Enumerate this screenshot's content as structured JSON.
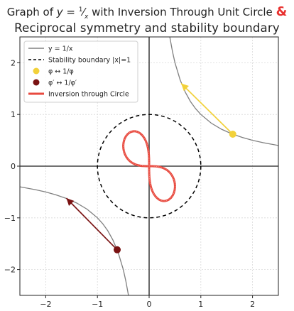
{
  "title": {
    "line1_text": "Graph of y = 1/x with Inversion Through Unit Circle",
    "line1_prefix": "Graph of",
    "line1_suffix": "with Inversion Through Unit Circle",
    "line1_amp": "&",
    "line2_text": "Reciprocal symmetry and stability boundary",
    "amp_color": "#e8312f"
  },
  "chart_data": {
    "type": "line",
    "title": "Graph of y = 1/x with Inversion Through Unit Circle & Reciprocal symmetry and stability boundary",
    "xlim": [
      -2.5,
      2.5
    ],
    "ylim": [
      -2.5,
      2.5
    ],
    "x_ticks": [
      -2,
      -1,
      0,
      1,
      2
    ],
    "y_ticks": [
      -2,
      -1,
      0,
      1,
      2
    ],
    "x_tick_labels": [
      "−2",
      "−1",
      "0",
      "1",
      "2"
    ],
    "y_tick_labels": [
      "−2",
      "−1",
      "0",
      "1",
      "2"
    ],
    "grid": true,
    "legend_position": "top-left",
    "series": [
      {
        "name": "y = 1/x",
        "kind": "curve",
        "color": "#808080",
        "points": [
          [
            0.4,
            2.5
          ],
          [
            0.45,
            2.222
          ],
          [
            0.5,
            2.0
          ],
          [
            0.6,
            1.667
          ],
          [
            0.7,
            1.429
          ],
          [
            0.8,
            1.25
          ],
          [
            0.9,
            1.111
          ],
          [
            1.0,
            1.0
          ],
          [
            1.2,
            0.833
          ],
          [
            1.4,
            0.714
          ],
          [
            1.6,
            0.625
          ],
          [
            1.8,
            0.556
          ],
          [
            2.0,
            0.5
          ],
          [
            2.2,
            0.455
          ],
          [
            2.5,
            0.4
          ]
        ],
        "mirror_points": [
          [
            -0.4,
            -2.5
          ],
          [
            -0.45,
            -2.222
          ],
          [
            -0.5,
            -2.0
          ],
          [
            -0.6,
            -1.667
          ],
          [
            -0.7,
            -1.429
          ],
          [
            -0.8,
            -1.25
          ],
          [
            -0.9,
            -1.111
          ],
          [
            -1.0,
            -1.0
          ],
          [
            -1.2,
            -0.833
          ],
          [
            -1.4,
            -0.714
          ],
          [
            -1.6,
            -0.625
          ],
          [
            -1.8,
            -0.556
          ],
          [
            -2.0,
            -0.5
          ],
          [
            -2.2,
            -0.455
          ],
          [
            -2.5,
            -0.4
          ]
        ]
      },
      {
        "name": "Stability boundary |x|=1",
        "kind": "circle",
        "color": "#000000",
        "center": [
          0,
          0
        ],
        "radius": 1
      },
      {
        "name": "φ ↔ 1/φ",
        "kind": "marker",
        "color": "#f2d13a",
        "point": [
          1.618,
          0.618
        ],
        "arrow_to": [
          0.62,
          1.6
        ]
      },
      {
        "name": "φ′ ↔ 1/φ′",
        "kind": "marker",
        "color": "#7a1212",
        "point": [
          -0.618,
          -1.618
        ],
        "arrow_to": [
          -1.6,
          -0.62
        ]
      },
      {
        "name": "Inversion through Circle",
        "kind": "lemniscate",
        "color": "#e84a3f",
        "scale": 0.62
      }
    ],
    "legend": [
      {
        "label": "y = 1/x",
        "style": "line",
        "color": "#808080"
      },
      {
        "label": "Stability boundary |x|=1",
        "style": "dashed",
        "color": "#000000"
      },
      {
        "label": "φ ↔ 1/φ",
        "style": "dot",
        "color": "#f2d13a"
      },
      {
        "label": "φ′ ↔ 1/φ′",
        "style": "dot",
        "color": "#7a1212"
      },
      {
        "label": "Inversion through Circle",
        "style": "thick",
        "color": "#e84a3f"
      }
    ]
  }
}
